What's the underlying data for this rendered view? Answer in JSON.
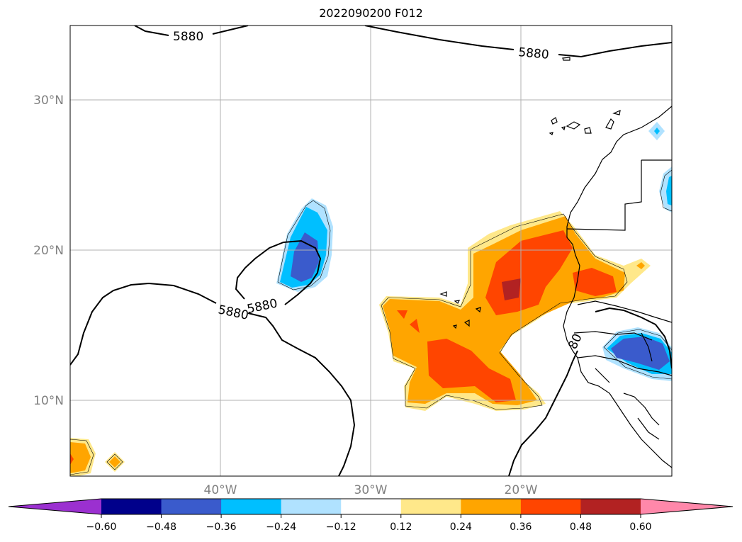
{
  "title": "2022090200 F012",
  "map": {
    "lat_ticks": [
      "30°N",
      "20°N",
      "10°N"
    ],
    "lon_ticks": [
      "40°W",
      "30°W",
      "20°W"
    ],
    "contour_value_label": "5880",
    "contour_label_partial": "80",
    "gridlines": true
  },
  "colorbar": {
    "ticks": [
      "−0.60",
      "−0.48",
      "−0.36",
      "−0.24",
      "−0.12",
      "0.12",
      "0.24",
      "0.36",
      "0.48",
      "0.60"
    ],
    "colors": [
      "#9b30d0",
      "#00008b",
      "#3a5bcc",
      "#00bfff",
      "#b0e2ff",
      "#ffffff",
      "#ffe88a",
      "#ffa500",
      "#ff4500",
      "#b22222",
      "#ff88aa"
    ],
    "extend": "both"
  }
}
